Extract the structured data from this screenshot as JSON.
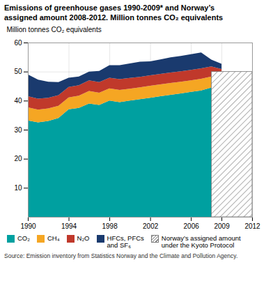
{
  "chart_data": {
    "type": "area",
    "stacked": true,
    "title": "Emissions of greenhouse gases 1990-2009* and Norway’s\nassigned amount 2008-2012. Million tonnes CO₂ equivalents",
    "ylabel": "Million tonnes CO₂ equivalents",
    "annotations": [
      "Source: Emission inventory from Statistics Norway and the Climate and Pollution Agency."
    ],
    "x": [
      1990,
      1991,
      1992,
      1993,
      1994,
      1995,
      1996,
      1997,
      1998,
      1999,
      2000,
      2001,
      2002,
      2003,
      2004,
      2005,
      2006,
      2007,
      2008,
      2009
    ],
    "series": [
      {
        "name": "CO₂",
        "color": "#00a0a0",
        "values": [
          33.2,
          32.5,
          33.0,
          34.0,
          37.0,
          37.5,
          39.0,
          38.5,
          40.0,
          39.5,
          40.0,
          40.5,
          41.0,
          41.5,
          42.0,
          42.5,
          43.0,
          43.5,
          44.5,
          43.8
        ]
      },
      {
        "name": "CH₄",
        "color": "#f5a623",
        "values": [
          4.5,
          4.4,
          4.3,
          4.2,
          4.1,
          4.2,
          4.3,
          4.2,
          4.2,
          4.2,
          4.1,
          4.1,
          4.1,
          4.1,
          4.1,
          4.0,
          4.0,
          4.0,
          3.8,
          3.7
        ]
      },
      {
        "name": "N₂O",
        "color": "#c0392b",
        "values": [
          3.8,
          3.8,
          3.7,
          3.7,
          3.6,
          3.6,
          3.7,
          3.7,
          3.7,
          3.7,
          3.7,
          3.6,
          3.6,
          3.6,
          3.6,
          3.6,
          3.6,
          3.6,
          3.5,
          3.4
        ]
      },
      {
        "name": "HFCs, PFCs\nand SF₆",
        "color": "#1a3a6e",
        "values": [
          7.5,
          6.5,
          5.5,
          4.5,
          3.2,
          3.0,
          3.0,
          3.8,
          4.3,
          4.8,
          5.0,
          5.2,
          4.8,
          5.0,
          5.2,
          5.3,
          5.4,
          5.5,
          2.3,
          1.8
        ]
      }
    ],
    "assigned_amount": {
      "name": "Norway’s assigned amount\nunder the Kyoto Protocol",
      "x": [
        2008,
        2012
      ],
      "value": 50.0,
      "color": "#777777"
    },
    "xlim": [
      1990,
      2012
    ],
    "xticks": [
      1990,
      1994,
      1998,
      2002,
      2006,
      2009,
      2012
    ],
    "ylim": [
      0,
      60
    ],
    "yticks": [
      10,
      20,
      30,
      40,
      50,
      60
    ],
    "grid": true,
    "legend": "bottom"
  }
}
